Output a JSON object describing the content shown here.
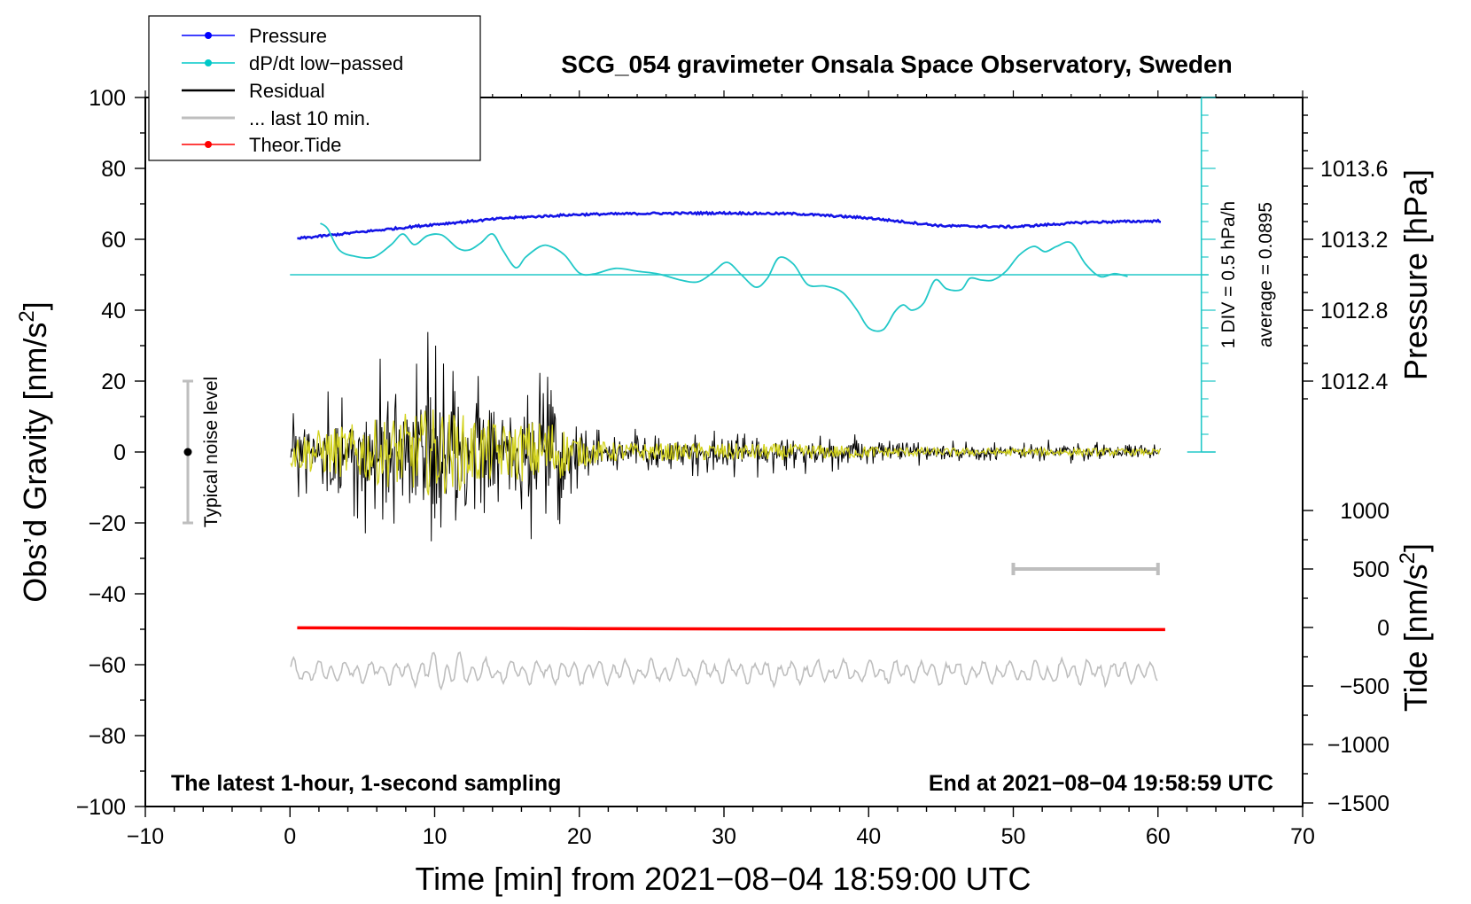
{
  "chart_data": {
    "type": "line",
    "title": "SCG_054 gravimeter Onsala Space Observatory, Sweden",
    "xlabel": "Time [min] from 2021−08−04 18:59:00 UTC",
    "ylabel_left_main": "Obs’d Gravity [nm/s",
    "ylabel_left_sup": "2",
    "ylabel_left_end": "]",
    "ylabel_right_top": "Pressure [hPa]",
    "ylabel_right_bottom_main": "Tide [nm/s",
    "ylabel_right_bottom_sup": "2",
    "ylabel_right_bottom_end": "]",
    "xlim": [
      -10,
      70
    ],
    "ylim_left": [
      -100,
      100
    ],
    "x_ticks": [
      "−10",
      "0",
      "10",
      "20",
      "30",
      "40",
      "50",
      "60",
      "70"
    ],
    "y_ticks_left": [
      "100",
      "80",
      "60",
      "40",
      "20",
      "0",
      "−20",
      "−40",
      "−60",
      "−80",
      "−100"
    ],
    "pressure_ticks": [
      "1013.6",
      "1013.2",
      "1012.8",
      "1012.4"
    ],
    "tide_ticks": [
      "1000",
      "500",
      "0",
      "−500",
      "−1000",
      "−1500"
    ],
    "footer_left": "The latest 1‑hour, 1‑second sampling",
    "footer_right": "End at 2021−08−04 19:58:59 UTC",
    "noise_label": "Typical noise level",
    "noise_range": [
      -20,
      20
    ],
    "dpdt_scale_label": "1 DIV = 0.5 hPa/h",
    "dpdt_average_label": "average = 0.0895",
    "legend": [
      {
        "label": "Pressure",
        "color": "#0000ff",
        "marker": true
      },
      {
        "label": "dP/dt low−passed",
        "color": "#00c8c8",
        "marker": true
      },
      {
        "label": "Residual",
        "color": "#000000",
        "marker": false
      },
      {
        "label": "... last 10 min.",
        "color": "#bebebe",
        "marker": false
      },
      {
        "label": "Theor.Tide",
        "color": "#ff0000",
        "marker": true
      }
    ],
    "colors": {
      "pressure": "#1414e6",
      "dpdt": "#22c8c8",
      "residual": "#000000",
      "residual_smoothed": "#d2d21e",
      "last10": "#bebebe",
      "tide": "#ff0000"
    },
    "pressure_series": {
      "x": [
        0.5,
        5,
        10,
        15,
        20,
        25,
        30,
        35,
        40,
        45,
        50,
        55,
        60.3
      ],
      "y": [
        60.2,
        62.1,
        64.2,
        66.0,
        67.0,
        67.3,
        67.4,
        67.2,
        66.0,
        63.8,
        63.5,
        64.8,
        65.2
      ]
    },
    "dpdt_series": {
      "x": [
        2.1,
        2.6,
        3.4,
        4.5,
        5.8,
        7.0,
        7.8,
        8.6,
        9.5,
        10.5,
        11.6,
        12.4,
        13.2,
        14.0,
        14.7,
        15.6,
        16.3,
        17.3,
        18.0,
        19.0,
        20.0,
        21.0,
        22.5,
        24.0,
        25.5,
        27.0,
        28.2,
        29.2,
        30.2,
        31.2,
        32.2,
        33.0,
        33.8,
        34.8,
        35.8,
        37.0,
        38.2,
        39.2,
        40.0,
        41.0,
        41.8,
        42.4,
        43.0,
        43.8,
        44.6,
        45.4,
        46.4,
        47.0,
        47.8,
        48.6,
        49.5,
        50.4,
        51.4,
        52.2,
        53.0,
        54.0,
        55.0,
        56.0,
        57.0,
        57.9
      ],
      "y": [
        64.5,
        63.0,
        57.0,
        55.2,
        55.0,
        58.5,
        61.5,
        58.5,
        61.0,
        61.2,
        57.5,
        57.0,
        59.0,
        61.5,
        57.0,
        52.0,
        55.0,
        58.0,
        58.0,
        55.5,
        50.5,
        50.2,
        51.8,
        51.0,
        50.2,
        48.5,
        48.0,
        50.5,
        53.5,
        50.0,
        46.5,
        49.0,
        54.8,
        53.0,
        47.2,
        46.8,
        45.0,
        40.0,
        35.0,
        34.5,
        39.5,
        41.5,
        40.0,
        42.0,
        48.5,
        46.0,
        45.8,
        49.0,
        48.5,
        48.5,
        51.0,
        55.5,
        58.0,
        56.5,
        58.0,
        59.0,
        53.0,
        49.5,
        50.3,
        49.5
      ]
    },
    "dpdt_reference_y": 50.0,
    "residual_envelope": {
      "x": [
        0,
        5,
        10,
        15,
        18,
        20,
        22,
        25,
        30,
        35,
        40,
        45,
        50,
        55,
        60
      ],
      "amplitude": [
        18,
        30,
        45,
        28,
        35,
        15,
        10,
        9,
        9,
        8,
        6,
        4,
        4,
        4,
        3
      ]
    },
    "tide_series": {
      "x": [
        0.5,
        20,
        30,
        45,
        60.5
      ],
      "y": [
        -49.6,
        -49.8,
        -49.9,
        -50.0,
        -50.1
      ]
    },
    "last10_baseline": -62.0,
    "last10_bar_x": [
      50,
      60
    ],
    "last10_bar_y": -33.0
  }
}
